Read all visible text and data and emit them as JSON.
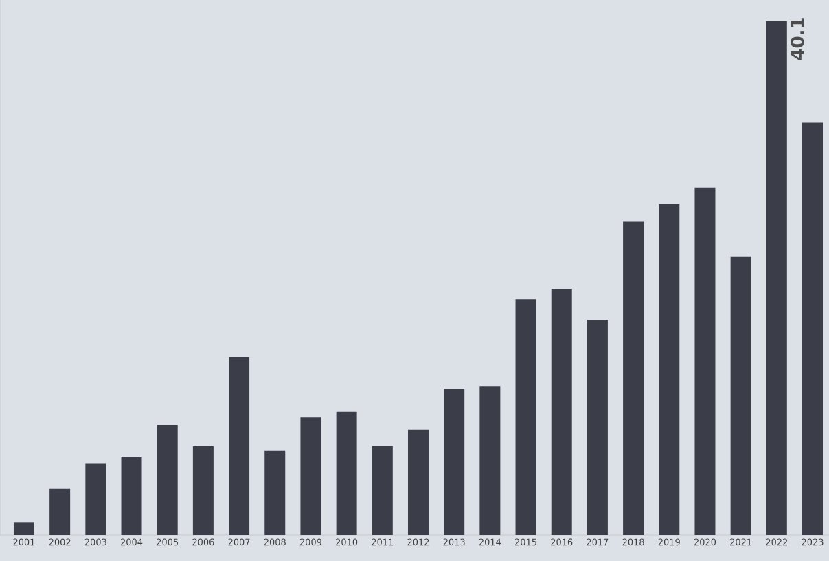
{
  "chart_data": {
    "type": "bar",
    "categories": [
      "2001",
      "2002",
      "2003",
      "2004",
      "2005",
      "2006",
      "2007",
      "2008",
      "2009",
      "2010",
      "2011",
      "2012",
      "2013",
      "2014",
      "2015",
      "2016",
      "2017",
      "2018",
      "2019",
      "2020",
      "2021",
      "2022",
      "2023"
    ],
    "values": [
      1.0,
      3.6,
      5.6,
      6.1,
      8.6,
      6.9,
      13.9,
      6.6,
      9.2,
      9.6,
      6.9,
      8.2,
      11.4,
      11.6,
      18.4,
      19.2,
      16.8,
      24.5,
      25.8,
      27.1,
      21.7,
      40.1,
      32.2
    ],
    "value_labels": [
      null,
      null,
      null,
      null,
      null,
      null,
      null,
      null,
      null,
      null,
      null,
      null,
      null,
      null,
      null,
      null,
      null,
      null,
      null,
      null,
      null,
      "40.1",
      null
    ],
    "color": "#3b3e48"
  }
}
